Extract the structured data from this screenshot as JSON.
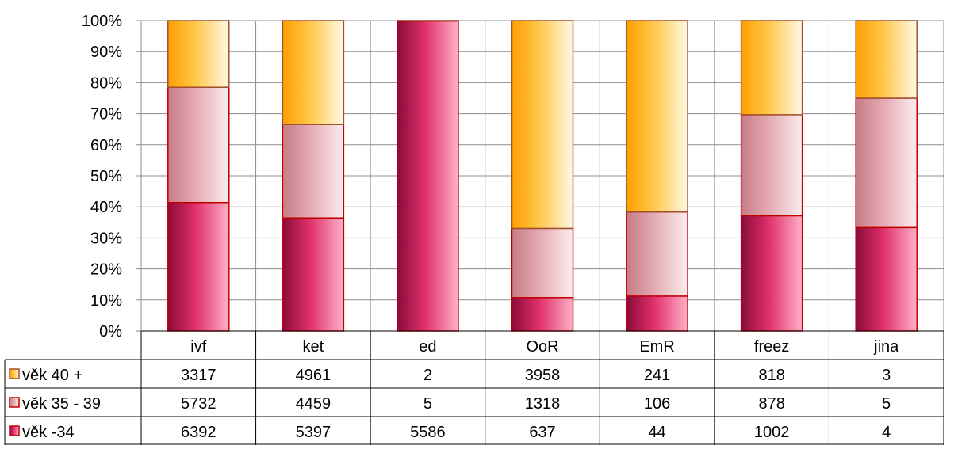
{
  "chart_data": {
    "type": "bar",
    "stacked": "percent",
    "categories": [
      "ivf",
      "ket",
      "ed",
      "OoR",
      "EmR",
      "freez",
      "jina"
    ],
    "series": [
      {
        "name": "věk -34",
        "values": [
          6392,
          5397,
          5586,
          637,
          44,
          1002,
          4
        ]
      },
      {
        "name": "věk 35 - 39",
        "values": [
          5732,
          4459,
          5,
          1318,
          106,
          878,
          5
        ]
      },
      {
        "name": "věk 40 +",
        "values": [
          3317,
          4961,
          2,
          3958,
          241,
          818,
          3
        ]
      }
    ],
    "table_row_order": [
      "věk 40 +",
      "věk 35 - 39",
      "věk -34"
    ],
    "yticks": [
      "0%",
      "10%",
      "20%",
      "30%",
      "40%",
      "50%",
      "60%",
      "70%",
      "80%",
      "90%",
      "100%"
    ],
    "ylim": [
      0,
      100
    ],
    "grid": true,
    "legend": "data-table-rows",
    "colors": {
      "věk -34": {
        "dark": "#8a0a3a",
        "mid": "#e0306a",
        "light": "#ffb0c8",
        "edge": "#c00000"
      },
      "věk 35 - 39": {
        "dark": "#c77c87",
        "mid": "#e4aab3",
        "light": "#fbecee",
        "edge": "#c00000"
      },
      "věk 40 +": {
        "dark": "#ff9f00",
        "mid": "#ffc84a",
        "light": "#fff8e5",
        "edge": "#a0522d"
      }
    }
  }
}
